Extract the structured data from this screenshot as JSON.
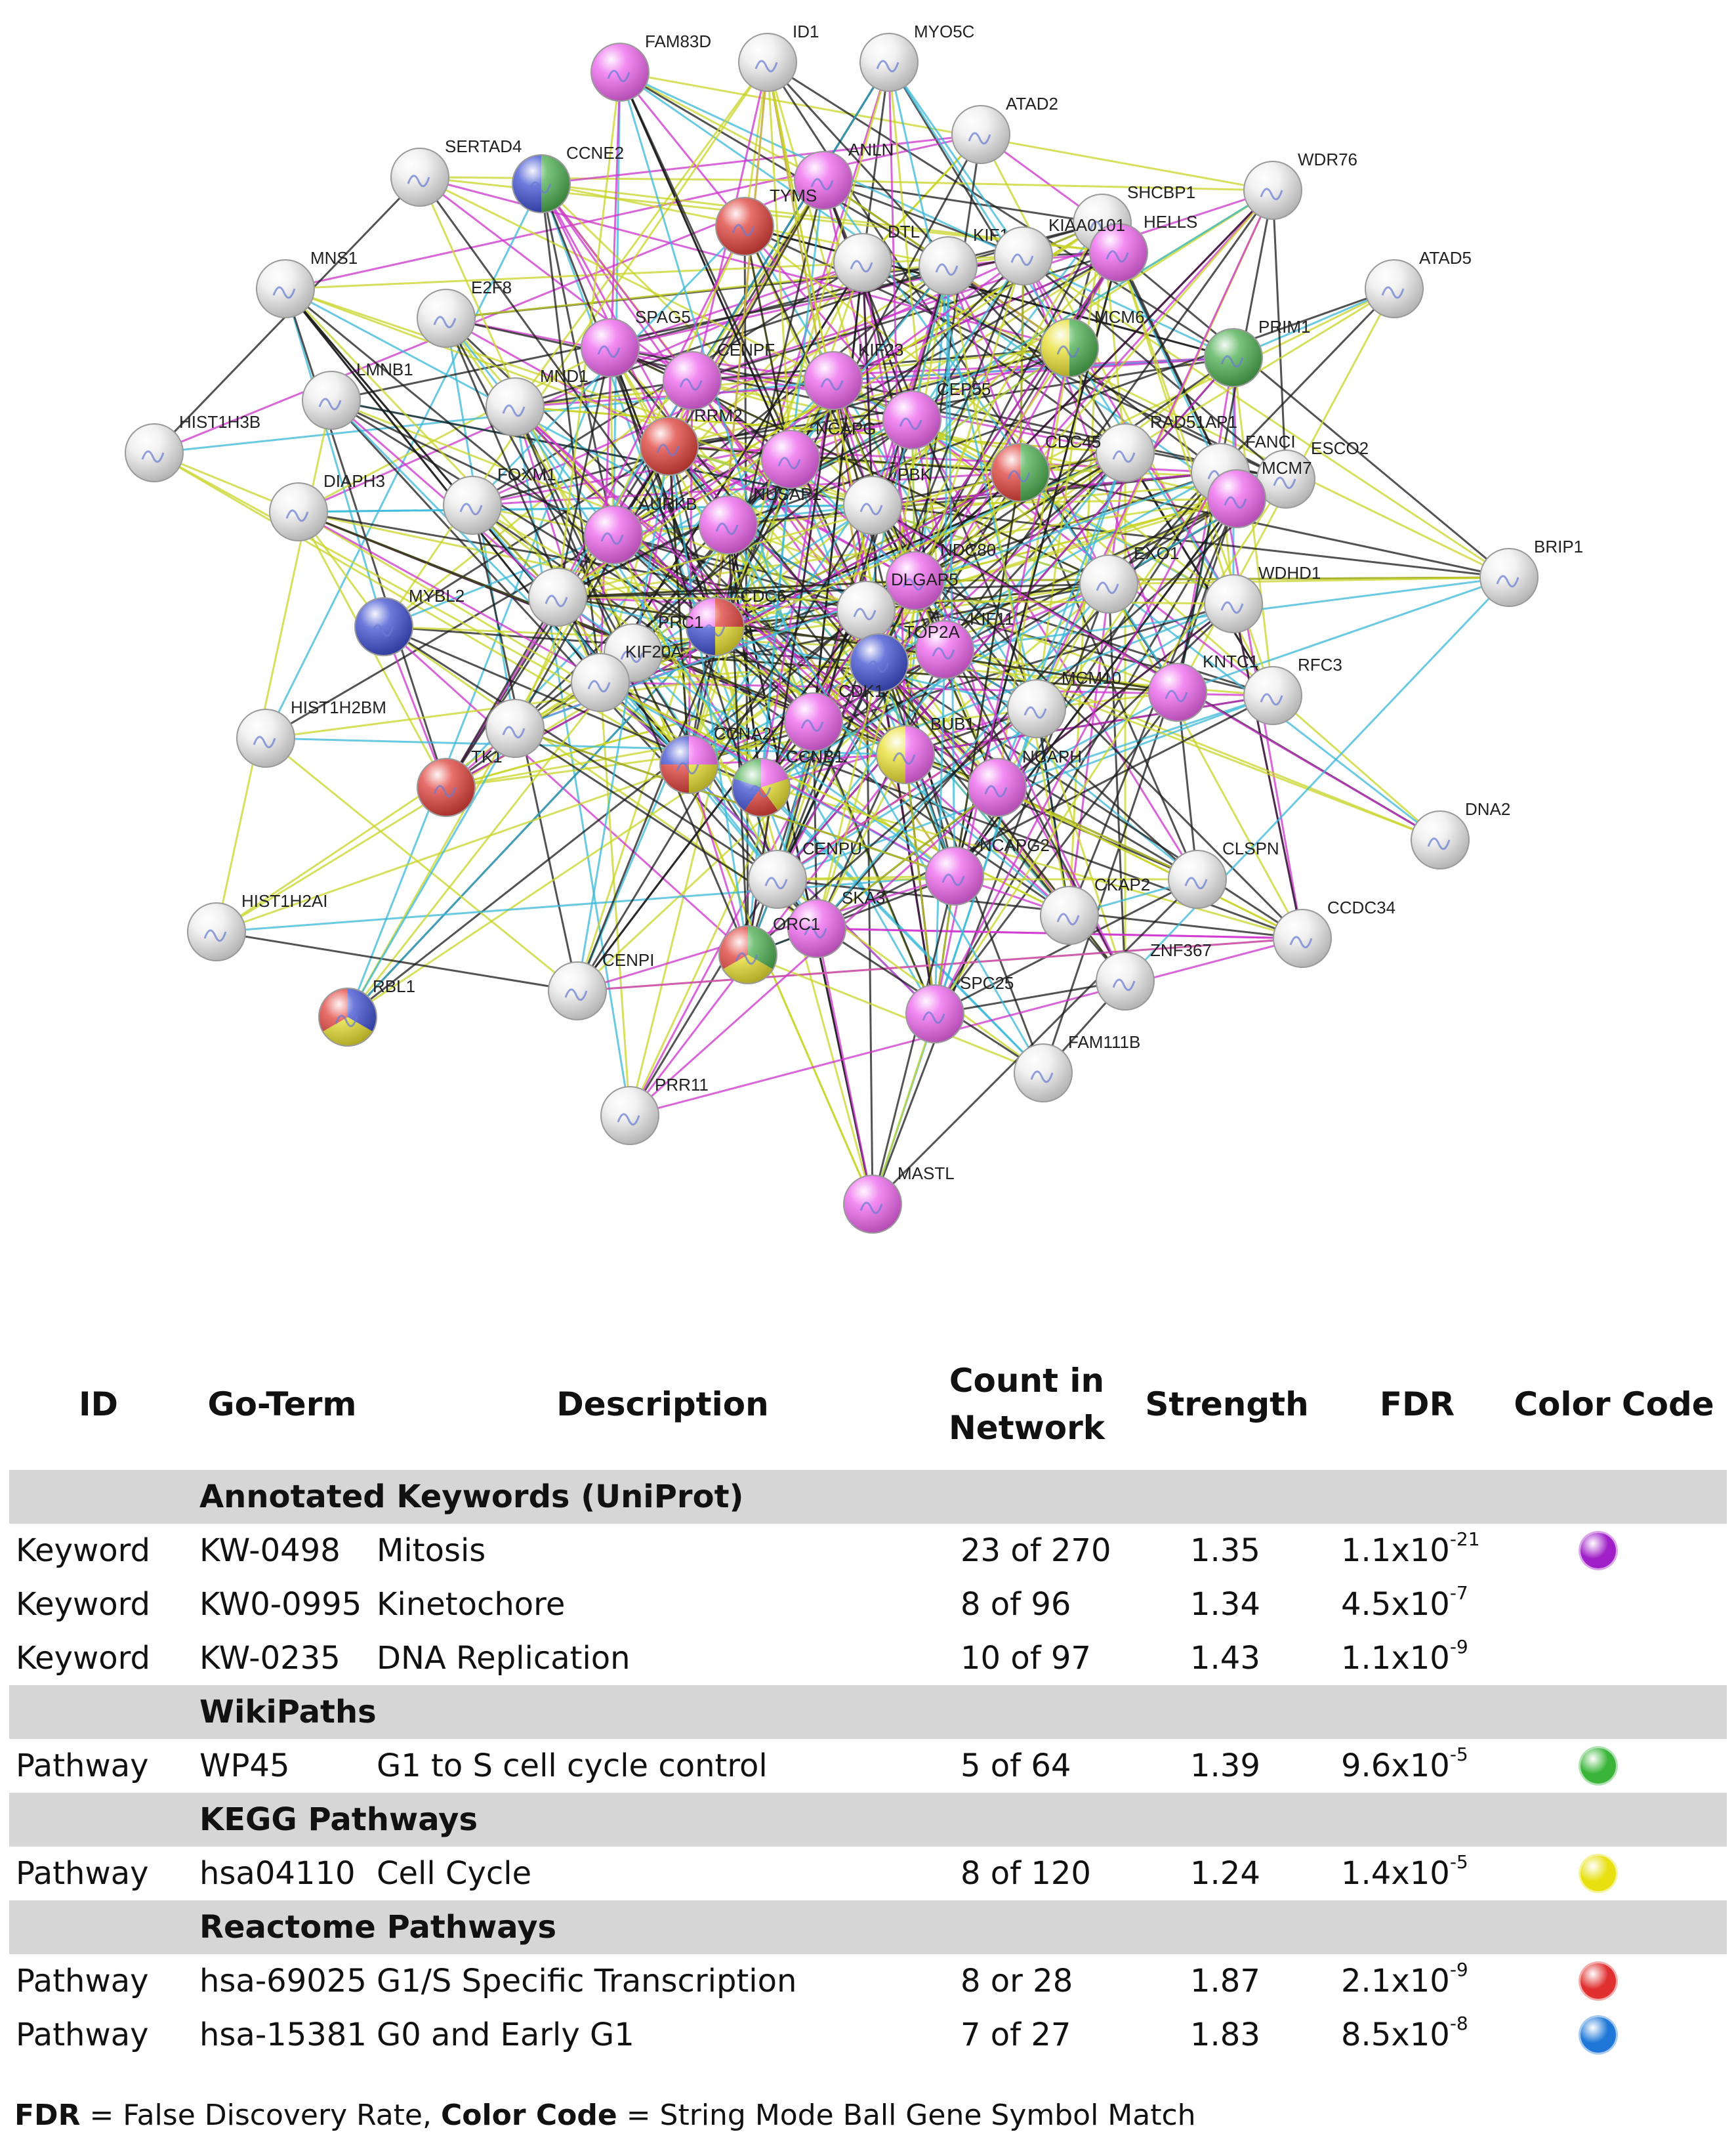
{
  "network": {
    "nodes": [
      {
        "id": "FAM83D",
        "fill": "magenta"
      },
      {
        "id": "ID1",
        "fill": "white"
      },
      {
        "id": "MYO5C",
        "fill": "white"
      },
      {
        "id": "ATAD2",
        "fill": "white"
      },
      {
        "id": "SERTAD4",
        "fill": "white"
      },
      {
        "id": "CCNE2",
        "fill": "multi",
        "colors": [
          "#4caf50",
          "#3e4fd1"
        ]
      },
      {
        "id": "ANLN",
        "fill": "magenta"
      },
      {
        "id": "TYMS",
        "fill": "red"
      },
      {
        "id": "WDR76",
        "fill": "white"
      },
      {
        "id": "SHCBP1",
        "fill": "white"
      },
      {
        "id": "HELLS",
        "fill": "magenta"
      },
      {
        "id": "KIF14",
        "fill": "white"
      },
      {
        "id": "KIAA0101",
        "fill": "white"
      },
      {
        "id": "DTL",
        "fill": "white"
      },
      {
        "id": "MNS1",
        "fill": "white"
      },
      {
        "id": "E2F8",
        "fill": "white"
      },
      {
        "id": "ATAD5",
        "fill": "white"
      },
      {
        "id": "SPAG5",
        "fill": "magenta"
      },
      {
        "id": "CENPF",
        "fill": "magenta"
      },
      {
        "id": "KIF23",
        "fill": "magenta"
      },
      {
        "id": "MCM6",
        "fill": "multi",
        "colors": [
          "#4caf50",
          "#e8e030"
        ]
      },
      {
        "id": "PRIM1",
        "fill": "green"
      },
      {
        "id": "LMNB1",
        "fill": "white"
      },
      {
        "id": "MND1",
        "fill": "white"
      },
      {
        "id": "CEP55",
        "fill": "magenta"
      },
      {
        "id": "HIST1H3B",
        "fill": "white"
      },
      {
        "id": "RRM2",
        "fill": "red"
      },
      {
        "id": "NCAPG",
        "fill": "magenta"
      },
      {
        "id": "RAD51AP1",
        "fill": "white"
      },
      {
        "id": "CDC45",
        "fill": "multi",
        "colors": [
          "#4caf50",
          "#e0403a"
        ]
      },
      {
        "id": "ESCO2",
        "fill": "white"
      },
      {
        "id": "FANCI",
        "fill": "white"
      },
      {
        "id": "DIAPH3",
        "fill": "white"
      },
      {
        "id": "FOXM1",
        "fill": "white"
      },
      {
        "id": "AURKB",
        "fill": "magenta"
      },
      {
        "id": "NUSAP1",
        "fill": "magenta"
      },
      {
        "id": "PBK",
        "fill": "white"
      },
      {
        "id": "MCM7",
        "fill": "magenta"
      },
      {
        "id": "NDC80",
        "fill": "magenta"
      },
      {
        "id": "EXO1",
        "fill": "white"
      },
      {
        "id": "WDHD1",
        "fill": "white"
      },
      {
        "id": "BRIP1",
        "fill": "white"
      },
      {
        "id": "MYBL2",
        "fill": "blue"
      },
      {
        "id": "CDC6",
        "fill": "multi",
        "colors": [
          "#e0403a",
          "#e8e030",
          "#3e4fd1",
          "#ee66ee"
        ]
      },
      {
        "id": "KIF11",
        "fill": "magenta"
      },
      {
        "id": "DLGAP5",
        "fill": "white"
      },
      {
        "id": "TOP2A",
        "fill": "blue"
      },
      {
        "id": "PRC1",
        "fill": "white"
      },
      {
        "id": "KIF20A",
        "fill": "white"
      },
      {
        "id": "MCM10",
        "fill": "white"
      },
      {
        "id": "KNTC1",
        "fill": "magenta"
      },
      {
        "id": "RFC3",
        "fill": "white"
      },
      {
        "id": "HIST1H2BM",
        "fill": "white"
      },
      {
        "id": "CCNA2",
        "fill": "multi",
        "colors": [
          "#ee66ee",
          "#e8e030",
          "#e0403a",
          "#3e4fd1"
        ]
      },
      {
        "id": "CDK1",
        "fill": "magenta"
      },
      {
        "id": "BUB1",
        "fill": "multi",
        "colors": [
          "#ee66ee",
          "#e8e030"
        ]
      },
      {
        "id": "NCAPH",
        "fill": "magenta"
      },
      {
        "id": "TK1",
        "fill": "red"
      },
      {
        "id": "CCNB1",
        "fill": "multi",
        "colors": [
          "#ee66ee",
          "#e8e030",
          "#e0403a",
          "#3e4fd1",
          "#4caf50"
        ]
      },
      {
        "id": "CENPU",
        "fill": "white"
      },
      {
        "id": "NCAPG2",
        "fill": "magenta"
      },
      {
        "id": "CKAP2",
        "fill": "white"
      },
      {
        "id": "CLSPN",
        "fill": "white"
      },
      {
        "id": "DNA2",
        "fill": "white"
      },
      {
        "id": "HIST1H2AI",
        "fill": "white"
      },
      {
        "id": "SKA3",
        "fill": "magenta"
      },
      {
        "id": "ORC1",
        "fill": "multi",
        "colors": [
          "#4caf50",
          "#e8e030",
          "#e0403a"
        ]
      },
      {
        "id": "CCDC34",
        "fill": "white"
      },
      {
        "id": "ZNF367",
        "fill": "white"
      },
      {
        "id": "RBL1",
        "fill": "multi",
        "colors": [
          "#3e4fd1",
          "#e8e030",
          "#e0403a"
        ]
      },
      {
        "id": "CENPI",
        "fill": "white"
      },
      {
        "id": "SPC25",
        "fill": "magenta"
      },
      {
        "id": "FAM111B",
        "fill": "white"
      },
      {
        "id": "PRR11",
        "fill": "white"
      },
      {
        "id": "MASTL",
        "fill": "magenta"
      },
      {
        "id": "",
        "fill": "white"
      },
      {
        "id": "",
        "fill": "white"
      }
    ]
  },
  "table": {
    "headers": {
      "id": "ID",
      "goterm": "Go-Term",
      "description": "Description",
      "count_line1": "Count in",
      "count_line2": "Network",
      "strength": "Strength",
      "fdr": "FDR",
      "color_code": "Color Code"
    },
    "sections": [
      {
        "title": "Annotated Keywords (UniProt)",
        "rows": [
          {
            "id": "Keyword",
            "goterm": "KW-0498",
            "description": "Mitosis",
            "count": "23 of 270",
            "strength": "1.35",
            "fdr_base": "1.1x10",
            "fdr_exp": "-21",
            "color": "#a020c8"
          },
          {
            "id": "Keyword",
            "goterm": "KW0-0995",
            "description": "Kinetochore",
            "count": "8 of 96",
            "strength": "1.34",
            "fdr_base": "4.5x10",
            "fdr_exp": "-7",
            "color": ""
          },
          {
            "id": "Keyword",
            "goterm": "KW-0235",
            "description": "DNA Replication",
            "count": "10 of 97",
            "strength": "1.43",
            "fdr_base": "1.1x10",
            "fdr_exp": "-9",
            "color": ""
          }
        ]
      },
      {
        "title": "WikiPaths",
        "rows": [
          {
            "id": "Pathway",
            "goterm": "WP45",
            "description": "G1 to S cell cycle control",
            "count": "5 of 64",
            "strength": "1.39",
            "fdr_base": "9.6x10",
            "fdr_exp": "-5",
            "color": "#3ab53a"
          }
        ]
      },
      {
        "title": "KEGG Pathways",
        "rows": [
          {
            "id": "Pathway",
            "goterm": "hsa04110",
            "description": "Cell Cycle",
            "count": "8 of 120",
            "strength": "1.24",
            "fdr_base": "1.4x10",
            "fdr_exp": "-5",
            "color": "#e8e010"
          }
        ]
      },
      {
        "title": "Reactome Pathways",
        "rows": [
          {
            "id": "Pathway",
            "goterm": "hsa-69025",
            "description": "G1/S Specific Transcription",
            "count": "8 or 28",
            "strength": "1.87",
            "fdr_base": "2.1x10",
            "fdr_exp": "-9",
            "color": "#e03030"
          },
          {
            "id": "Pathway",
            "goterm": "hsa-15381:",
            "description": "G0 and Early G1",
            "count": "7 of 27",
            "strength": "1.83",
            "fdr_base": "8.5x10",
            "fdr_exp": "-8",
            "color": "#1f78d8"
          }
        ]
      }
    ]
  },
  "footnote": {
    "fdr_term": "FDR",
    "fdr_def": " = False Discovery Rate, ",
    "cc_term": "Color Code",
    "cc_def": " = String Mode Ball Gene Symbol Match"
  },
  "colors": {
    "magenta": "#ee66ee",
    "white": "#eeeeee",
    "red": "#e0403a",
    "blue": "#3e4fd1",
    "green": "#4caf50",
    "yellow": "#e8e030",
    "section_bg": "#d6d6d6"
  }
}
